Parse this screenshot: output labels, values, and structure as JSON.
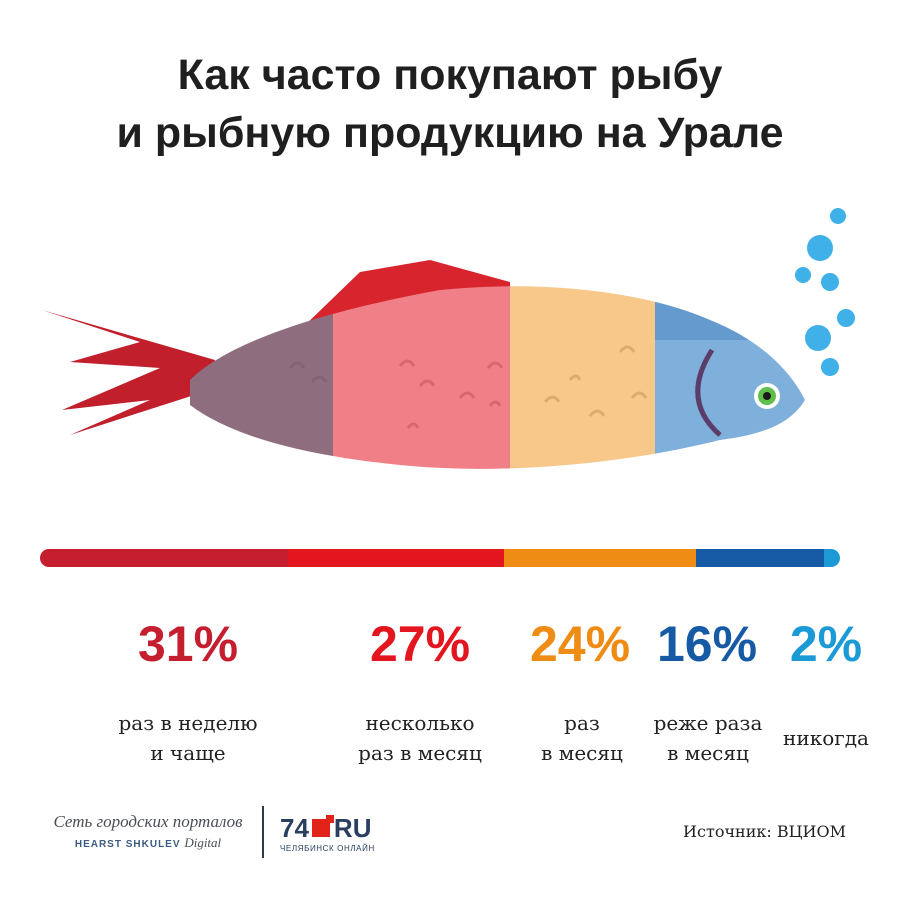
{
  "title": {
    "line1": "Как часто покупают рыбу",
    "line2": "и рыбную продукцию на Урале"
  },
  "chart_data": {
    "type": "bar",
    "orientation": "horizontal-stacked",
    "unit": "%",
    "categories": [
      "раз в неделю и чаще",
      "несколько раз в месяц",
      "раз в месяц",
      "реже раза в месяц",
      "никогда"
    ],
    "values": [
      31,
      27,
      24,
      16,
      2
    ],
    "value_labels": [
      "31%",
      "27%",
      "24%",
      "16%",
      "2%"
    ],
    "label_lines": [
      [
        "раз в неделю",
        "и чаще"
      ],
      [
        "несколько",
        "раз в месяц"
      ],
      [
        "раз",
        "в месяц"
      ],
      [
        "реже раза",
        "в месяц"
      ],
      [
        "никогда"
      ]
    ],
    "colors": [
      "#c41e2f",
      "#e3151f",
      "#ee8c14",
      "#1659a5",
      "#1b9ad6"
    ],
    "fish_overlay_colors": [
      "#8e6e7e",
      "#f07f88",
      "#f7c88a",
      "#7fb0dc"
    ],
    "legend": "none",
    "grid": false
  },
  "footer": {
    "portal_line1": "Сеть городских порталов",
    "portal_line2_bold": "HEARST SHKULEV",
    "portal_line2_italic": "Digital",
    "logo_number": "74",
    "logo_ru": "RU",
    "logo_sub": "ЧЕЛЯБИНСК ОНЛАЙН",
    "source": "Источник: ВЦИОМ"
  }
}
